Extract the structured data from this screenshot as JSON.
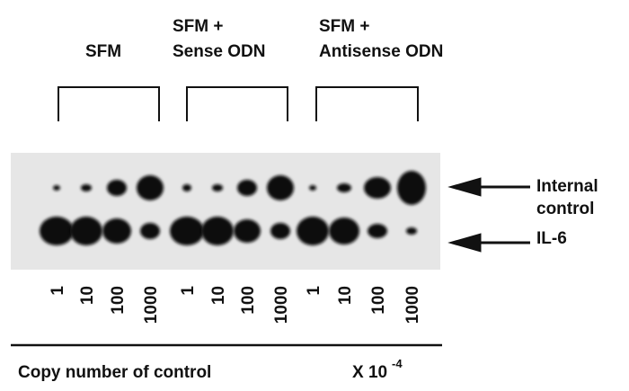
{
  "groups": [
    {
      "label_lines": [
        "SFM"
      ],
      "lanes": [
        "1",
        "10",
        "100",
        "1000"
      ]
    },
    {
      "label_lines": [
        "SFM +",
        "Sense ODN"
      ],
      "lanes": [
        "1",
        "10",
        "100",
        "1000"
      ]
    },
    {
      "label_lines": [
        "SFM +",
        "Antisense ODN"
      ],
      "lanes": [
        "1",
        "10",
        "100",
        "1000"
      ]
    }
  ],
  "bands": [
    {
      "label_lines": [
        "Internal",
        "control"
      ]
    },
    {
      "label_lines": [
        "IL-6"
      ]
    }
  ],
  "caption": {
    "text": "Copy number of control",
    "multiplier": "X 10",
    "exponent": "-4"
  }
}
